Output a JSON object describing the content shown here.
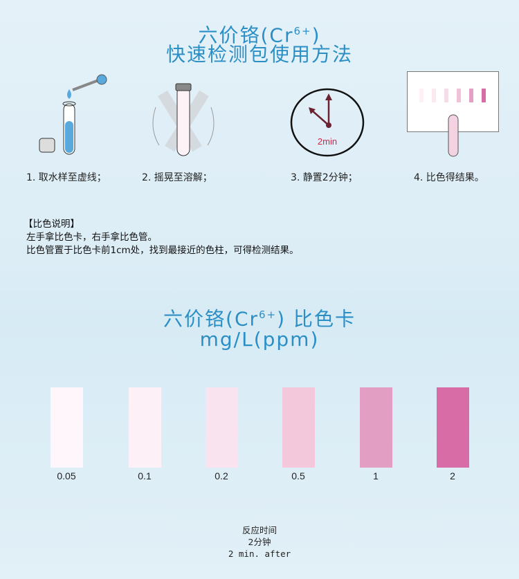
{
  "header": {
    "title_prefix": "六价铬(Cr",
    "title_sup": "6+",
    "title_suffix": ")",
    "subtitle": "快速检测包使用方法"
  },
  "steps": [
    {
      "label": "1. 取水样至虚线；",
      "icon": "test-tube-dropper-icon"
    },
    {
      "label": "2. 摇晃至溶解；",
      "icon": "shaking-tube-icon"
    },
    {
      "label": "3. 静置2分钟；",
      "icon": "clock-icon",
      "clock_text": "2min"
    },
    {
      "label": "4. 比色得结果。",
      "icon": "color-card-comparison-icon"
    }
  ],
  "notes": {
    "heading": "【比色说明】",
    "lines": [
      "左手拿比色卡，右手拿比色管。",
      "比色管置于比色卡前1cm处，找到最接近的色柱，可得检测结果。"
    ]
  },
  "card": {
    "title_prefix": "六价铬(Cr",
    "title_sup": "6+",
    "title_suffix": ") 比色卡",
    "unit": "mg/L(ppm)",
    "swatches": [
      {
        "value": "0.05",
        "color": "#fff6fb"
      },
      {
        "value": "0.1",
        "color": "#fdf0f6"
      },
      {
        "value": "0.2",
        "color": "#f9e3ee"
      },
      {
        "value": "0.5",
        "color": "#f3c8db"
      },
      {
        "value": "1",
        "color": "#e29fc3"
      },
      {
        "value": "2",
        "color": "#d86ca6"
      }
    ]
  },
  "footer": {
    "line1": "反应时间",
    "line2": "2分钟",
    "line3": "2 min. after"
  },
  "colors": {
    "title": "#2b8fc6",
    "clock_text": "#d2264a"
  }
}
